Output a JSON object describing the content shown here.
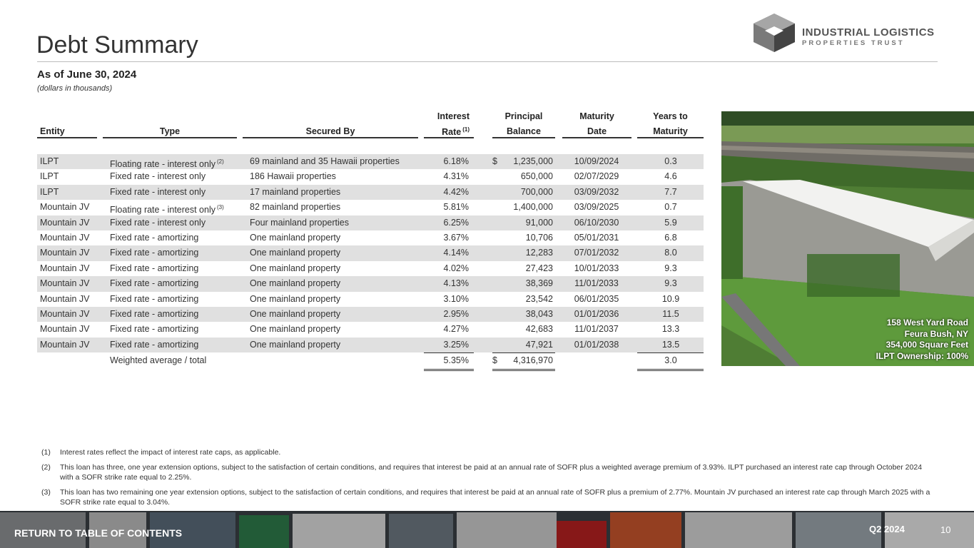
{
  "header": {
    "title": "Debt Summary",
    "subtitle": "As of June 30, 2024",
    "note": "(dollars in thousands)"
  },
  "logo": {
    "name": "INDUSTRIAL LOGISTICS",
    "tagline": "PROPERTIES TRUST"
  },
  "table": {
    "columns": [
      {
        "label": "Entity"
      },
      {
        "label": "Type"
      },
      {
        "label": "Secured By"
      },
      {
        "top": "Interest",
        "label": "Rate",
        "note": "(1)"
      },
      {
        "top": "Principal",
        "label": "Balance"
      },
      {
        "top": "Maturity",
        "label": "Date"
      },
      {
        "top": "Years to",
        "label": "Maturity"
      }
    ],
    "rows": [
      {
        "entity": "ILPT",
        "type": "Floating rate - interest only",
        "note": "(2)",
        "secured": "69 mainland and 35 Hawaii properties",
        "rate": "6.18%",
        "dollar": "$",
        "principal": "1,235,000",
        "maturity": "10/09/2024",
        "years": "0.3"
      },
      {
        "entity": "ILPT",
        "type": "Fixed rate - interest only",
        "secured": "186 Hawaii properties",
        "rate": "4.31%",
        "principal": "650,000",
        "maturity": "02/07/2029",
        "years": "4.6"
      },
      {
        "entity": "ILPT",
        "type": "Fixed rate - interest only",
        "secured": "17 mainland properties",
        "rate": "4.42%",
        "principal": "700,000",
        "maturity": "03/09/2032",
        "years": "7.7"
      },
      {
        "entity": "Mountain JV",
        "type": "Floating rate - interest only",
        "note": "(3)",
        "secured": "82 mainland properties",
        "rate": "5.81%",
        "principal": "1,400,000",
        "maturity": "03/09/2025",
        "years": "0.7"
      },
      {
        "entity": "Mountain JV",
        "type": "Fixed rate - interest only",
        "secured": "Four mainland properties",
        "rate": "6.25%",
        "principal": "91,000",
        "maturity": "06/10/2030",
        "years": "5.9"
      },
      {
        "entity": "Mountain JV",
        "type": "Fixed rate - amortizing",
        "secured": "One mainland property",
        "rate": "3.67%",
        "principal": "10,706",
        "maturity": "05/01/2031",
        "years": "6.8"
      },
      {
        "entity": "Mountain JV",
        "type": "Fixed rate - amortizing",
        "secured": "One mainland property",
        "rate": "4.14%",
        "principal": "12,283",
        "maturity": "07/01/2032",
        "years": "8.0"
      },
      {
        "entity": "Mountain JV",
        "type": "Fixed rate - amortizing",
        "secured": "One mainland property",
        "rate": "4.02%",
        "principal": "27,423",
        "maturity": "10/01/2033",
        "years": "9.3"
      },
      {
        "entity": "Mountain JV",
        "type": "Fixed rate - amortizing",
        "secured": "One mainland property",
        "rate": "4.13%",
        "principal": "38,369",
        "maturity": "11/01/2033",
        "years": "9.3"
      },
      {
        "entity": "Mountain JV",
        "type": "Fixed rate - amortizing",
        "secured": "One mainland property",
        "rate": "3.10%",
        "principal": "23,542",
        "maturity": "06/01/2035",
        "years": "10.9"
      },
      {
        "entity": "Mountain JV",
        "type": "Fixed rate - amortizing",
        "secured": "One mainland property",
        "rate": "2.95%",
        "principal": "38,043",
        "maturity": "01/01/2036",
        "years": "11.5"
      },
      {
        "entity": "Mountain JV",
        "type": "Fixed rate - amortizing",
        "secured": "One mainland property",
        "rate": "4.27%",
        "principal": "42,683",
        "maturity": "11/01/2037",
        "years": "13.3"
      },
      {
        "entity": "Mountain JV",
        "type": "Fixed rate - amortizing",
        "secured": "One mainland property",
        "rate": "3.25%",
        "principal": "47,921",
        "maturity": "01/01/2038",
        "years": "13.5"
      }
    ],
    "total": {
      "label": "Weighted average / total",
      "rate": "5.35%",
      "dollar": "$",
      "principal": "4,316,970",
      "years": "3.0"
    }
  },
  "photo": {
    "caption": [
      "158 West Yard Road",
      "Feura Bush, NY",
      "354,000 Square Feet",
      "ILPT Ownership: 100%"
    ]
  },
  "footnotes": [
    {
      "marker": "(1)",
      "text": "Interest rates reflect the impact of interest rate caps, as applicable."
    },
    {
      "marker": "(2)",
      "text": "This loan has three, one year extension options, subject to the satisfaction of certain conditions, and requires that interest be paid at an annual rate of SOFR plus a weighted average premium of 3.93%. ILPT purchased an interest rate cap through October 2024 with a SOFR strike rate equal to 2.25%."
    },
    {
      "marker": "(3)",
      "text": "This loan has two remaining one year extension options, subject to the satisfaction of certain conditions, and requires that interest be paid at an annual rate of SOFR plus a premium of 2.77%. Mountain JV purchased an interest rate cap through March 2025 with a SOFR strike rate equal to 3.04%."
    }
  ],
  "footer": {
    "link": "RETURN TO TABLE OF CONTENTS",
    "period": "Q2 2024",
    "page": "10"
  }
}
